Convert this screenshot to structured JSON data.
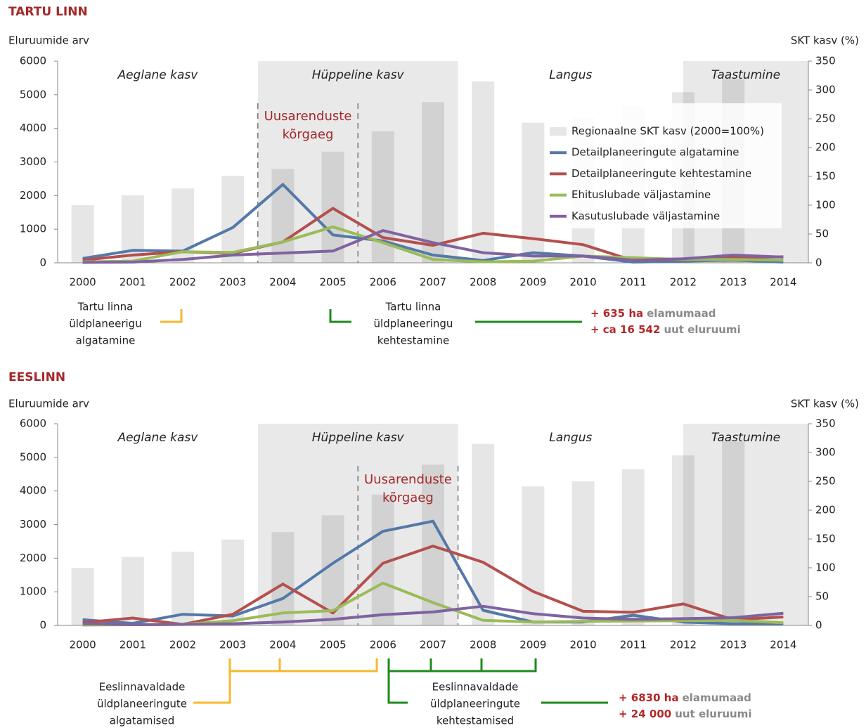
{
  "chart_data": [
    {
      "type": "bar_line",
      "title": "TARTU LINN",
      "ylabel": "Eluruumide arv",
      "y2label": "SKT kasv (%)",
      "categories": [
        "2000",
        "2001",
        "2002",
        "2003",
        "2004",
        "2005",
        "2006",
        "2007",
        "2008",
        "2009",
        "2010",
        "2011",
        "2012",
        "2013",
        "2014"
      ],
      "ylim": [
        0,
        6000
      ],
      "yticks": [
        0,
        1000,
        2000,
        3000,
        4000,
        5000,
        6000
      ],
      "y2lim": [
        0,
        350
      ],
      "y2ticks": [
        0,
        50,
        100,
        150,
        200,
        250,
        300,
        350
      ],
      "phases": [
        "Aeglane kasv",
        "Hüppeline kasv",
        "Langus",
        "Taastumine"
      ],
      "highlight": [
        "Uusarenduste",
        "kõrgaeg"
      ],
      "legend": "upper right",
      "series": [
        {
          "name": "Regionaalne SKT kasv (2000=100%)",
          "type": "bar",
          "axis": "y2",
          "color": "#e6e6e6",
          "values": [
            100,
            117,
            129,
            151,
            163,
            193,
            228,
            279,
            315,
            243,
            252,
            272,
            296,
            319,
            null
          ]
        },
        {
          "name": "Detailplaneeringute algatamine",
          "type": "line",
          "color": "#5479a8",
          "values": [
            130,
            370,
            350,
            1050,
            2330,
            830,
            650,
            230,
            70,
            300,
            200,
            20,
            50,
            80,
            20
          ]
        },
        {
          "name": "Detailplaneeringute kehtestamine",
          "type": "line",
          "color": "#b4504d",
          "values": [
            80,
            230,
            330,
            280,
            620,
            1620,
            750,
            520,
            880,
            720,
            540,
            70,
            100,
            150,
            180
          ]
        },
        {
          "name": "Ehituslubade väljastamine",
          "type": "line",
          "color": "#9bbb59",
          "values": [
            30,
            50,
            330,
            310,
            620,
            1070,
            600,
            100,
            30,
            50,
            200,
            150,
            100,
            100,
            80
          ]
        },
        {
          "name": "Kasutuslubade väljastamine",
          "type": "line",
          "color": "#7f63a0",
          "values": [
            10,
            20,
            100,
            230,
            290,
            350,
            960,
            600,
            300,
            200,
            200,
            80,
            120,
            230,
            170
          ]
        }
      ],
      "notes": [
        [
          "Tartu linna",
          "üldplaneerigu",
          "algatamine"
        ],
        [
          "Tartu linna",
          "üldplaneeringu",
          "kehtestamine"
        ]
      ],
      "totals": [
        {
          "amount": "+ 635 ha",
          "text": "elamumaad"
        },
        {
          "amount": "+ ca 16 542",
          "text": "uut eluruumi"
        }
      ]
    },
    {
      "type": "bar_line",
      "title": "EESLINN",
      "ylabel": "Eluruumide arv",
      "y2label": "SKT kasv (%)",
      "categories": [
        "2000",
        "2001",
        "2002",
        "2003",
        "2004",
        "2005",
        "2006",
        "2007",
        "2008",
        "2009",
        "2010",
        "2011",
        "2012",
        "2013",
        "2014"
      ],
      "ylim": [
        0,
        6000
      ],
      "yticks": [
        0,
        1000,
        2000,
        3000,
        4000,
        5000,
        6000
      ],
      "y2lim": [
        0,
        350
      ],
      "y2ticks": [
        0,
        50,
        100,
        150,
        200,
        250,
        300,
        350
      ],
      "phases": [
        "Aeglane kasv",
        "Hüppeline kasv",
        "Langus",
        "Taastumine"
      ],
      "highlight": [
        "Uusarenduste",
        "kõrgaeg"
      ],
      "series": [
        {
          "type": "bar",
          "axis": "y2",
          "color": "#e6e6e6",
          "values": [
            100,
            119,
            128,
            149,
            162,
            191,
            227,
            279,
            315,
            241,
            250,
            271,
            295,
            319,
            null
          ]
        },
        {
          "type": "line",
          "color": "#5479a8",
          "values": [
            170,
            60,
            330,
            280,
            800,
            1850,
            2800,
            3100,
            450,
            100,
            100,
            300,
            100,
            50,
            50
          ]
        },
        {
          "type": "line",
          "color": "#b4504d",
          "values": [
            80,
            220,
            30,
            330,
            1230,
            370,
            1850,
            2360,
            1880,
            1010,
            420,
            390,
            640,
            170,
            250
          ]
        },
        {
          "type": "line",
          "color": "#9bbb59",
          "values": [
            10,
            20,
            30,
            140,
            370,
            440,
            1260,
            680,
            150,
            100,
            120,
            130,
            140,
            150,
            80
          ]
        },
        {
          "type": "line",
          "color": "#7f63a0",
          "values": [
            50,
            20,
            30,
            50,
            100,
            180,
            320,
            400,
            570,
            350,
            220,
            180,
            200,
            230,
            360
          ]
        }
      ],
      "notes": [
        [
          "Eeslinnavaldade",
          "üldplaneeringute",
          "algatamised"
        ],
        [
          "Eeslinnavaldade",
          "üldplaneeringute",
          "kehtestamised"
        ]
      ],
      "totals": [
        {
          "amount": "+ 6830 ha",
          "text": "elamumaad"
        },
        {
          "amount": "+ 24 000",
          "text": "uut eluruumi"
        }
      ]
    }
  ]
}
